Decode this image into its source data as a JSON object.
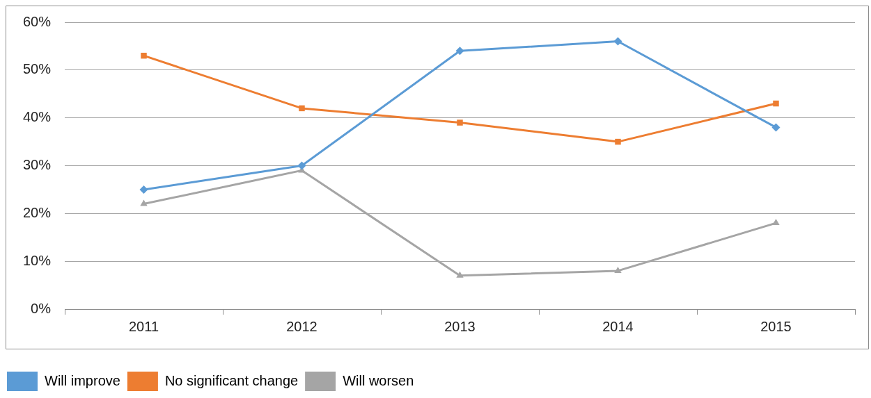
{
  "chart_data": {
    "type": "line",
    "categories": [
      "2011",
      "2012",
      "2013",
      "2014",
      "2015"
    ],
    "series": [
      {
        "name": "Will improve",
        "color": "#5b9bd5",
        "marker": "diamond",
        "values": [
          25,
          30,
          54,
          56,
          38
        ]
      },
      {
        "name": "No significant change",
        "color": "#ed7d31",
        "marker": "square",
        "values": [
          53,
          42,
          39,
          35,
          43
        ]
      },
      {
        "name": "Will worsen",
        "color": "#a5a5a5",
        "marker": "triangle",
        "values": [
          22,
          29,
          7,
          8,
          18
        ]
      }
    ],
    "ylim": [
      0,
      60
    ],
    "yticks": [
      {
        "value": 0,
        "label": "0%"
      },
      {
        "value": 10,
        "label": "10%"
      },
      {
        "value": 20,
        "label": "20%"
      },
      {
        "value": 30,
        "label": "30%"
      },
      {
        "value": 40,
        "label": "40%"
      },
      {
        "value": 50,
        "label": "50%"
      },
      {
        "value": 60,
        "label": "60%"
      }
    ],
    "grid": "y",
    "legend": "bottom left",
    "line_style": "solid"
  }
}
